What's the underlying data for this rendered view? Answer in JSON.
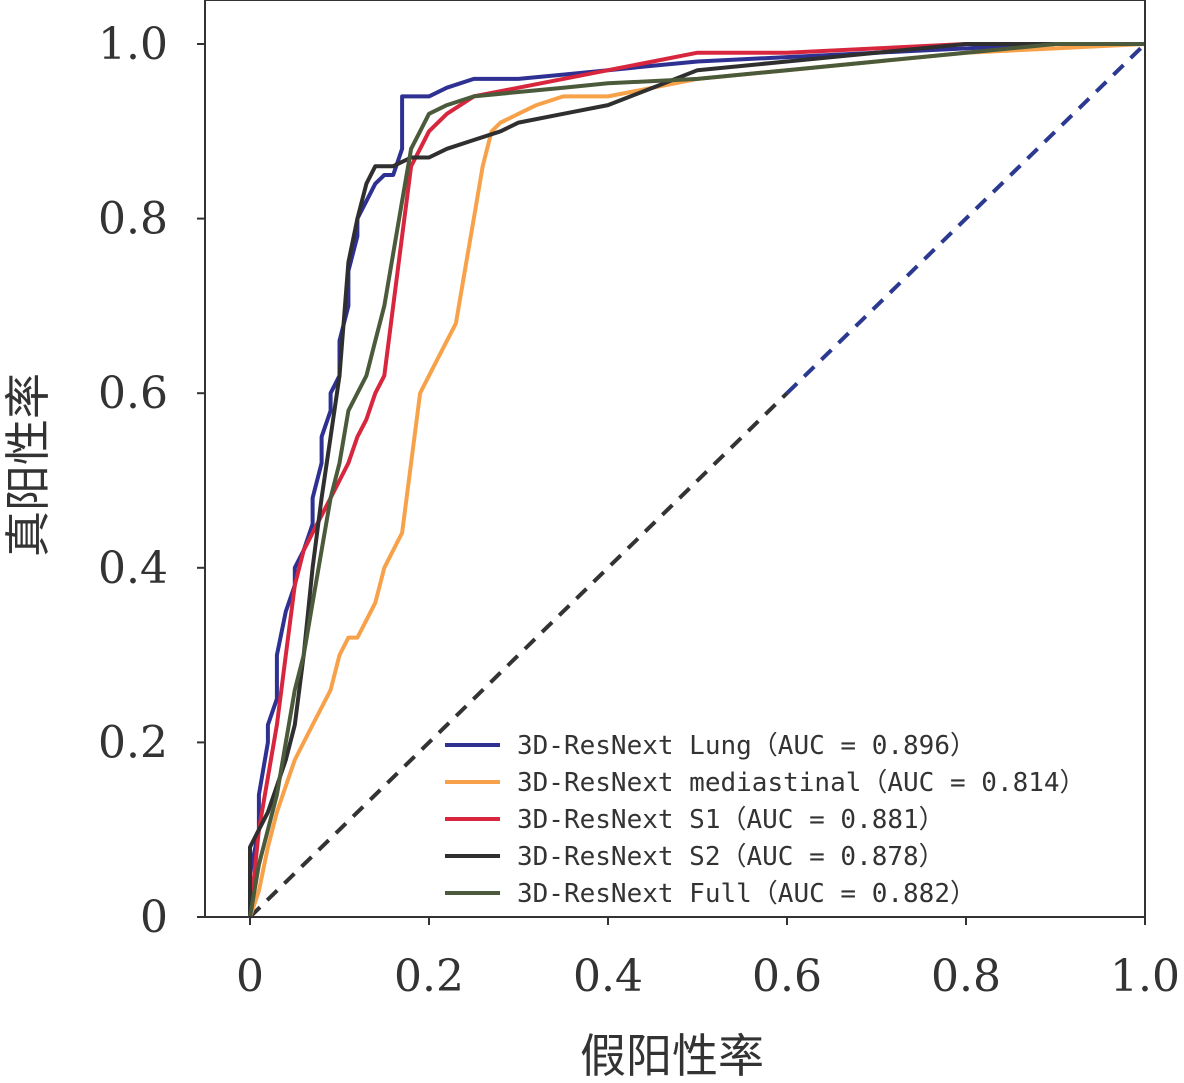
{
  "chart_data": {
    "type": "line",
    "title": "",
    "xlabel": "假阳性率",
    "ylabel": "真阳性率",
    "xlim": [
      0,
      1.0
    ],
    "ylim": [
      0,
      1.0
    ],
    "xticks": [
      "0",
      "0.2",
      "0.4",
      "0.6",
      "0.8",
      "1.0"
    ],
    "yticks": [
      "0",
      "0.2",
      "0.4",
      "0.6",
      "0.8",
      "1.0"
    ],
    "grid": false,
    "legend_position": "bottom-right",
    "diagonal": {
      "x": [
        0,
        1
      ],
      "y": [
        0,
        1
      ],
      "style": "dashed",
      "colors": [
        "#333333",
        "#2b3990"
      ]
    },
    "series": [
      {
        "name": "3D-ResNext Lung（AUC = 0.896）",
        "color": "#2e3192",
        "x": [
          0.0,
          0.0,
          0.01,
          0.01,
          0.02,
          0.02,
          0.03,
          0.03,
          0.04,
          0.05,
          0.05,
          0.06,
          0.07,
          0.07,
          0.08,
          0.08,
          0.09,
          0.09,
          0.1,
          0.1,
          0.11,
          0.11,
          0.12,
          0.12,
          0.13,
          0.14,
          0.15,
          0.16,
          0.17,
          0.17,
          0.19,
          0.2,
          0.22,
          0.25,
          0.3,
          0.35,
          0.4,
          0.45,
          0.5,
          0.6,
          0.7,
          0.8,
          0.9,
          1.0
        ],
        "y": [
          0.0,
          0.05,
          0.1,
          0.14,
          0.2,
          0.22,
          0.25,
          0.3,
          0.35,
          0.38,
          0.4,
          0.42,
          0.45,
          0.48,
          0.52,
          0.55,
          0.58,
          0.6,
          0.62,
          0.66,
          0.7,
          0.74,
          0.78,
          0.8,
          0.82,
          0.84,
          0.85,
          0.85,
          0.88,
          0.94,
          0.94,
          0.94,
          0.95,
          0.96,
          0.96,
          0.965,
          0.97,
          0.975,
          0.98,
          0.985,
          0.99,
          0.995,
          1.0,
          1.0
        ]
      },
      {
        "name": "3D-ResNext mediastinal（AUC = 0.814）",
        "color": "#f7a24a",
        "x": [
          0.0,
          0.01,
          0.02,
          0.03,
          0.04,
          0.05,
          0.06,
          0.07,
          0.08,
          0.09,
          0.1,
          0.11,
          0.12,
          0.13,
          0.14,
          0.15,
          0.16,
          0.17,
          0.18,
          0.19,
          0.2,
          0.21,
          0.22,
          0.23,
          0.24,
          0.25,
          0.26,
          0.27,
          0.28,
          0.3,
          0.32,
          0.35,
          0.4,
          0.45,
          0.5,
          0.6,
          0.7,
          0.8,
          0.9,
          1.0
        ],
        "y": [
          0.0,
          0.03,
          0.08,
          0.12,
          0.15,
          0.18,
          0.2,
          0.22,
          0.24,
          0.26,
          0.3,
          0.32,
          0.32,
          0.34,
          0.36,
          0.4,
          0.42,
          0.44,
          0.52,
          0.6,
          0.62,
          0.64,
          0.66,
          0.68,
          0.74,
          0.8,
          0.86,
          0.9,
          0.91,
          0.92,
          0.93,
          0.94,
          0.94,
          0.95,
          0.96,
          0.97,
          0.98,
          0.99,
          0.995,
          1.0
        ]
      },
      {
        "name": "3D-ResNext S1（AUC = 0.881）",
        "color": "#d7263d",
        "x": [
          0.0,
          0.01,
          0.02,
          0.03,
          0.04,
          0.05,
          0.06,
          0.07,
          0.08,
          0.09,
          0.1,
          0.11,
          0.12,
          0.13,
          0.14,
          0.15,
          0.16,
          0.17,
          0.18,
          0.19,
          0.2,
          0.22,
          0.25,
          0.3,
          0.35,
          0.4,
          0.45,
          0.5,
          0.6,
          0.7,
          0.8,
          0.9,
          1.0
        ],
        "y": [
          0.0,
          0.1,
          0.16,
          0.22,
          0.3,
          0.38,
          0.42,
          0.44,
          0.46,
          0.48,
          0.5,
          0.52,
          0.55,
          0.57,
          0.6,
          0.62,
          0.7,
          0.78,
          0.86,
          0.88,
          0.9,
          0.92,
          0.94,
          0.95,
          0.96,
          0.97,
          0.98,
          0.99,
          0.99,
          0.995,
          1.0,
          1.0,
          1.0
        ]
      },
      {
        "name": "3D-ResNext S2（AUC = 0.878）",
        "color": "#2f2f2f",
        "x": [
          0.0,
          0.0,
          0.01,
          0.02,
          0.03,
          0.04,
          0.05,
          0.06,
          0.07,
          0.08,
          0.09,
          0.1,
          0.11,
          0.12,
          0.13,
          0.14,
          0.15,
          0.16,
          0.18,
          0.2,
          0.22,
          0.25,
          0.28,
          0.3,
          0.35,
          0.4,
          0.45,
          0.5,
          0.6,
          0.7,
          0.8,
          0.9,
          1.0
        ],
        "y": [
          0.0,
          0.08,
          0.1,
          0.12,
          0.15,
          0.18,
          0.22,
          0.3,
          0.4,
          0.48,
          0.55,
          0.62,
          0.75,
          0.8,
          0.84,
          0.86,
          0.86,
          0.86,
          0.87,
          0.87,
          0.88,
          0.89,
          0.9,
          0.91,
          0.92,
          0.93,
          0.95,
          0.97,
          0.98,
          0.99,
          1.0,
          1.0,
          1.0
        ]
      },
      {
        "name": "3D-ResNext Full（AUC = 0.882）",
        "color": "#4a5a3a",
        "x": [
          0.0,
          0.01,
          0.02,
          0.03,
          0.04,
          0.05,
          0.06,
          0.07,
          0.08,
          0.09,
          0.1,
          0.11,
          0.12,
          0.13,
          0.14,
          0.15,
          0.16,
          0.17,
          0.18,
          0.19,
          0.2,
          0.22,
          0.25,
          0.3,
          0.35,
          0.4,
          0.5,
          0.6,
          0.7,
          0.8,
          0.9,
          1.0
        ],
        "y": [
          0.0,
          0.06,
          0.1,
          0.14,
          0.2,
          0.26,
          0.3,
          0.36,
          0.42,
          0.48,
          0.52,
          0.58,
          0.6,
          0.62,
          0.66,
          0.7,
          0.76,
          0.82,
          0.88,
          0.9,
          0.92,
          0.93,
          0.94,
          0.945,
          0.95,
          0.955,
          0.96,
          0.97,
          0.98,
          0.99,
          1.0,
          1.0
        ]
      }
    ]
  }
}
